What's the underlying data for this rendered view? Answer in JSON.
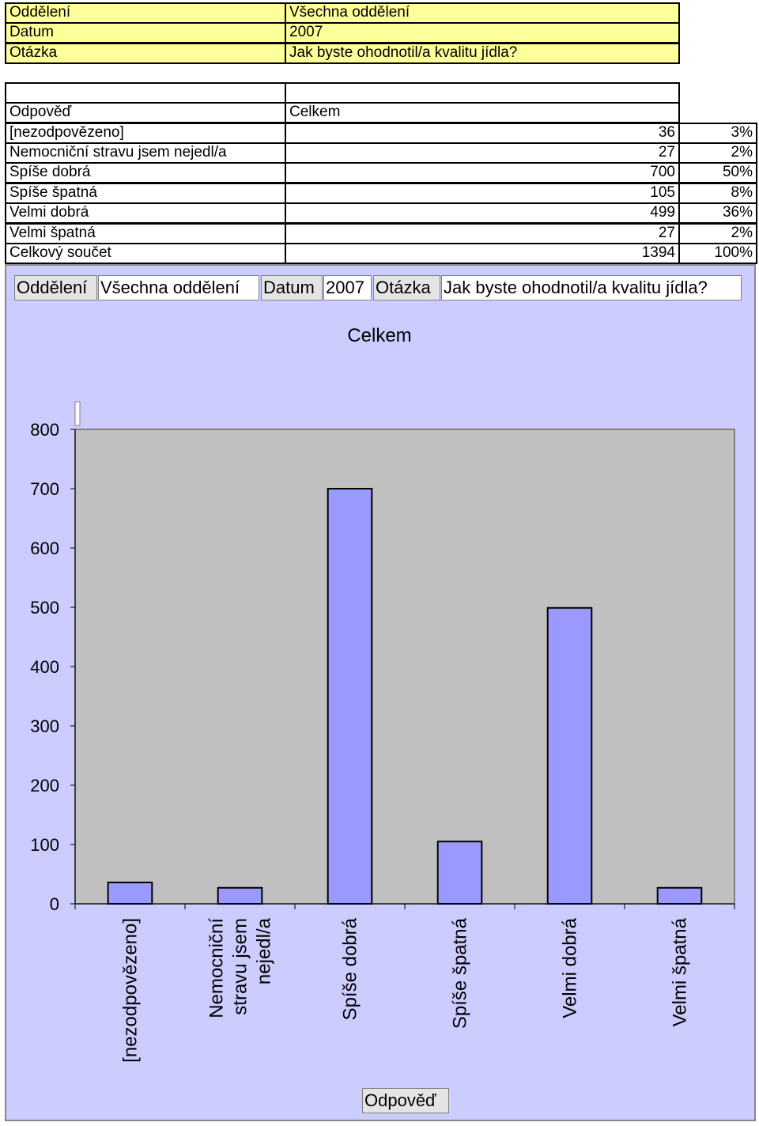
{
  "info": {
    "dept_label": "Oddělení",
    "dept_value": "Všechna oddělení",
    "date_label": "Datum",
    "date_value": "2007",
    "question_label": "Otázka",
    "question_value": "Jak byste ohodnotil/a kvalitu jídla?"
  },
  "table": {
    "row_header": "Odpověď",
    "col_header": "Celkem",
    "rows": [
      {
        "label": "[nezodpovězeno]",
        "count": "36",
        "pct": "3%"
      },
      {
        "label": "Nemocniční stravu jsem nejedl/a",
        "count": "27",
        "pct": "2%"
      },
      {
        "label": "Spíše dobrá",
        "count": "700",
        "pct": "50%"
      },
      {
        "label": "Spíše špatná",
        "count": "105",
        "pct": "8%"
      },
      {
        "label": "Velmi dobrá",
        "count": "499",
        "pct": "36%"
      },
      {
        "label": "Velmi špatná",
        "count": "27",
        "pct": "2%"
      }
    ],
    "total": {
      "label": "Celkový součet",
      "count": "1394",
      "pct": "100%"
    }
  },
  "filters": {
    "dept_label": "Oddělení",
    "dept_value": "Všechna oddělení",
    "date_label": "Datum",
    "date_value": "2007",
    "question_label": "Otázka",
    "question_value": "Jak byste ohodnotil/a kvalitu jídla?"
  },
  "colors": {
    "bar": "#9999ff",
    "plot": "#c0c0c0",
    "chart_bg": "#ccccff"
  },
  "chart_data": {
    "type": "bar",
    "title": "Celkem",
    "xlabel": "Odpověď",
    "ylabel": "",
    "categories": [
      "[nezodpovězeno]",
      "Nemocniční stravu jsem nejedl/a",
      "Spíše dobrá",
      "Spíše špatná",
      "Velmi dobrá",
      "Velmi špatná"
    ],
    "values": [
      36,
      27,
      700,
      105,
      499,
      27
    ],
    "ylim": [
      0,
      800
    ],
    "yticks": [
      0,
      100,
      200,
      300,
      400,
      500,
      600,
      700,
      800
    ],
    "grid": false,
    "legend": "none"
  }
}
